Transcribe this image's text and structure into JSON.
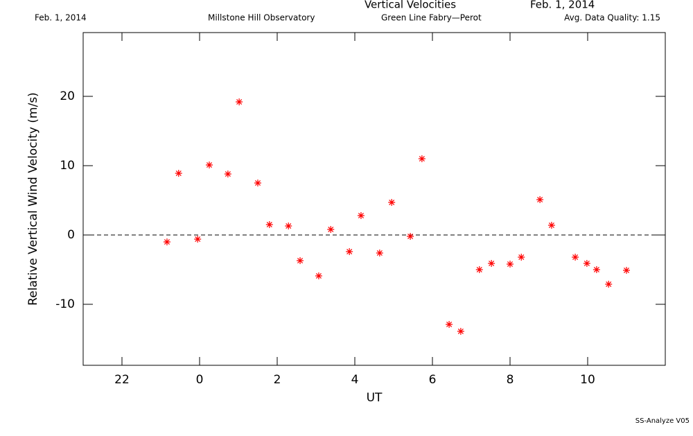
{
  "header": {
    "date_left": "Feb. 1, 2014",
    "observatory": "Millstone Hill Observatory",
    "instrument": "Green Line Fabry—Perot",
    "date_right": "Feb. 1, 2014",
    "quality": "Avg. Data Quality: 1.15"
  },
  "footer": "SS-Analyze V05",
  "chart_data": {
    "type": "scatter",
    "title": "Vertical Velocities",
    "x_label": "UT",
    "y_label": "Relative Vertical Wind Velocity (m/s)",
    "color": "#ff0000",
    "x": [
      -0.84,
      -0.54,
      -0.05,
      0.25,
      0.73,
      1.02,
      1.5,
      1.8,
      2.29,
      2.59,
      3.07,
      3.38,
      3.86,
      4.16,
      4.64,
      4.95,
      5.43,
      5.73,
      6.43,
      6.73,
      7.21,
      7.52,
      8.0,
      8.29,
      8.77,
      9.07,
      9.68,
      9.98,
      10.23,
      10.54,
      11.0
    ],
    "values": [
      -1.0,
      8.9,
      -0.6,
      10.1,
      8.8,
      19.2,
      7.5,
      1.5,
      1.3,
      -3.7,
      -5.9,
      0.8,
      -2.4,
      2.8,
      -2.6,
      4.7,
      -0.2,
      11.0,
      -12.9,
      -13.9,
      -5.0,
      -4.1,
      -4.2,
      -3.2,
      5.1,
      1.4,
      -3.2,
      -4.1,
      -5.0,
      -7.1,
      -5.1
    ],
    "xlim": [
      -3,
      12
    ],
    "xticks": [
      {
        "value": -2,
        "label": "22"
      },
      0,
      2,
      4,
      6,
      8,
      10
    ],
    "ylim": [
      -18.8,
      29.2
    ],
    "yticks": [
      -10,
      0,
      10,
      20
    ],
    "zero_line": true
  }
}
